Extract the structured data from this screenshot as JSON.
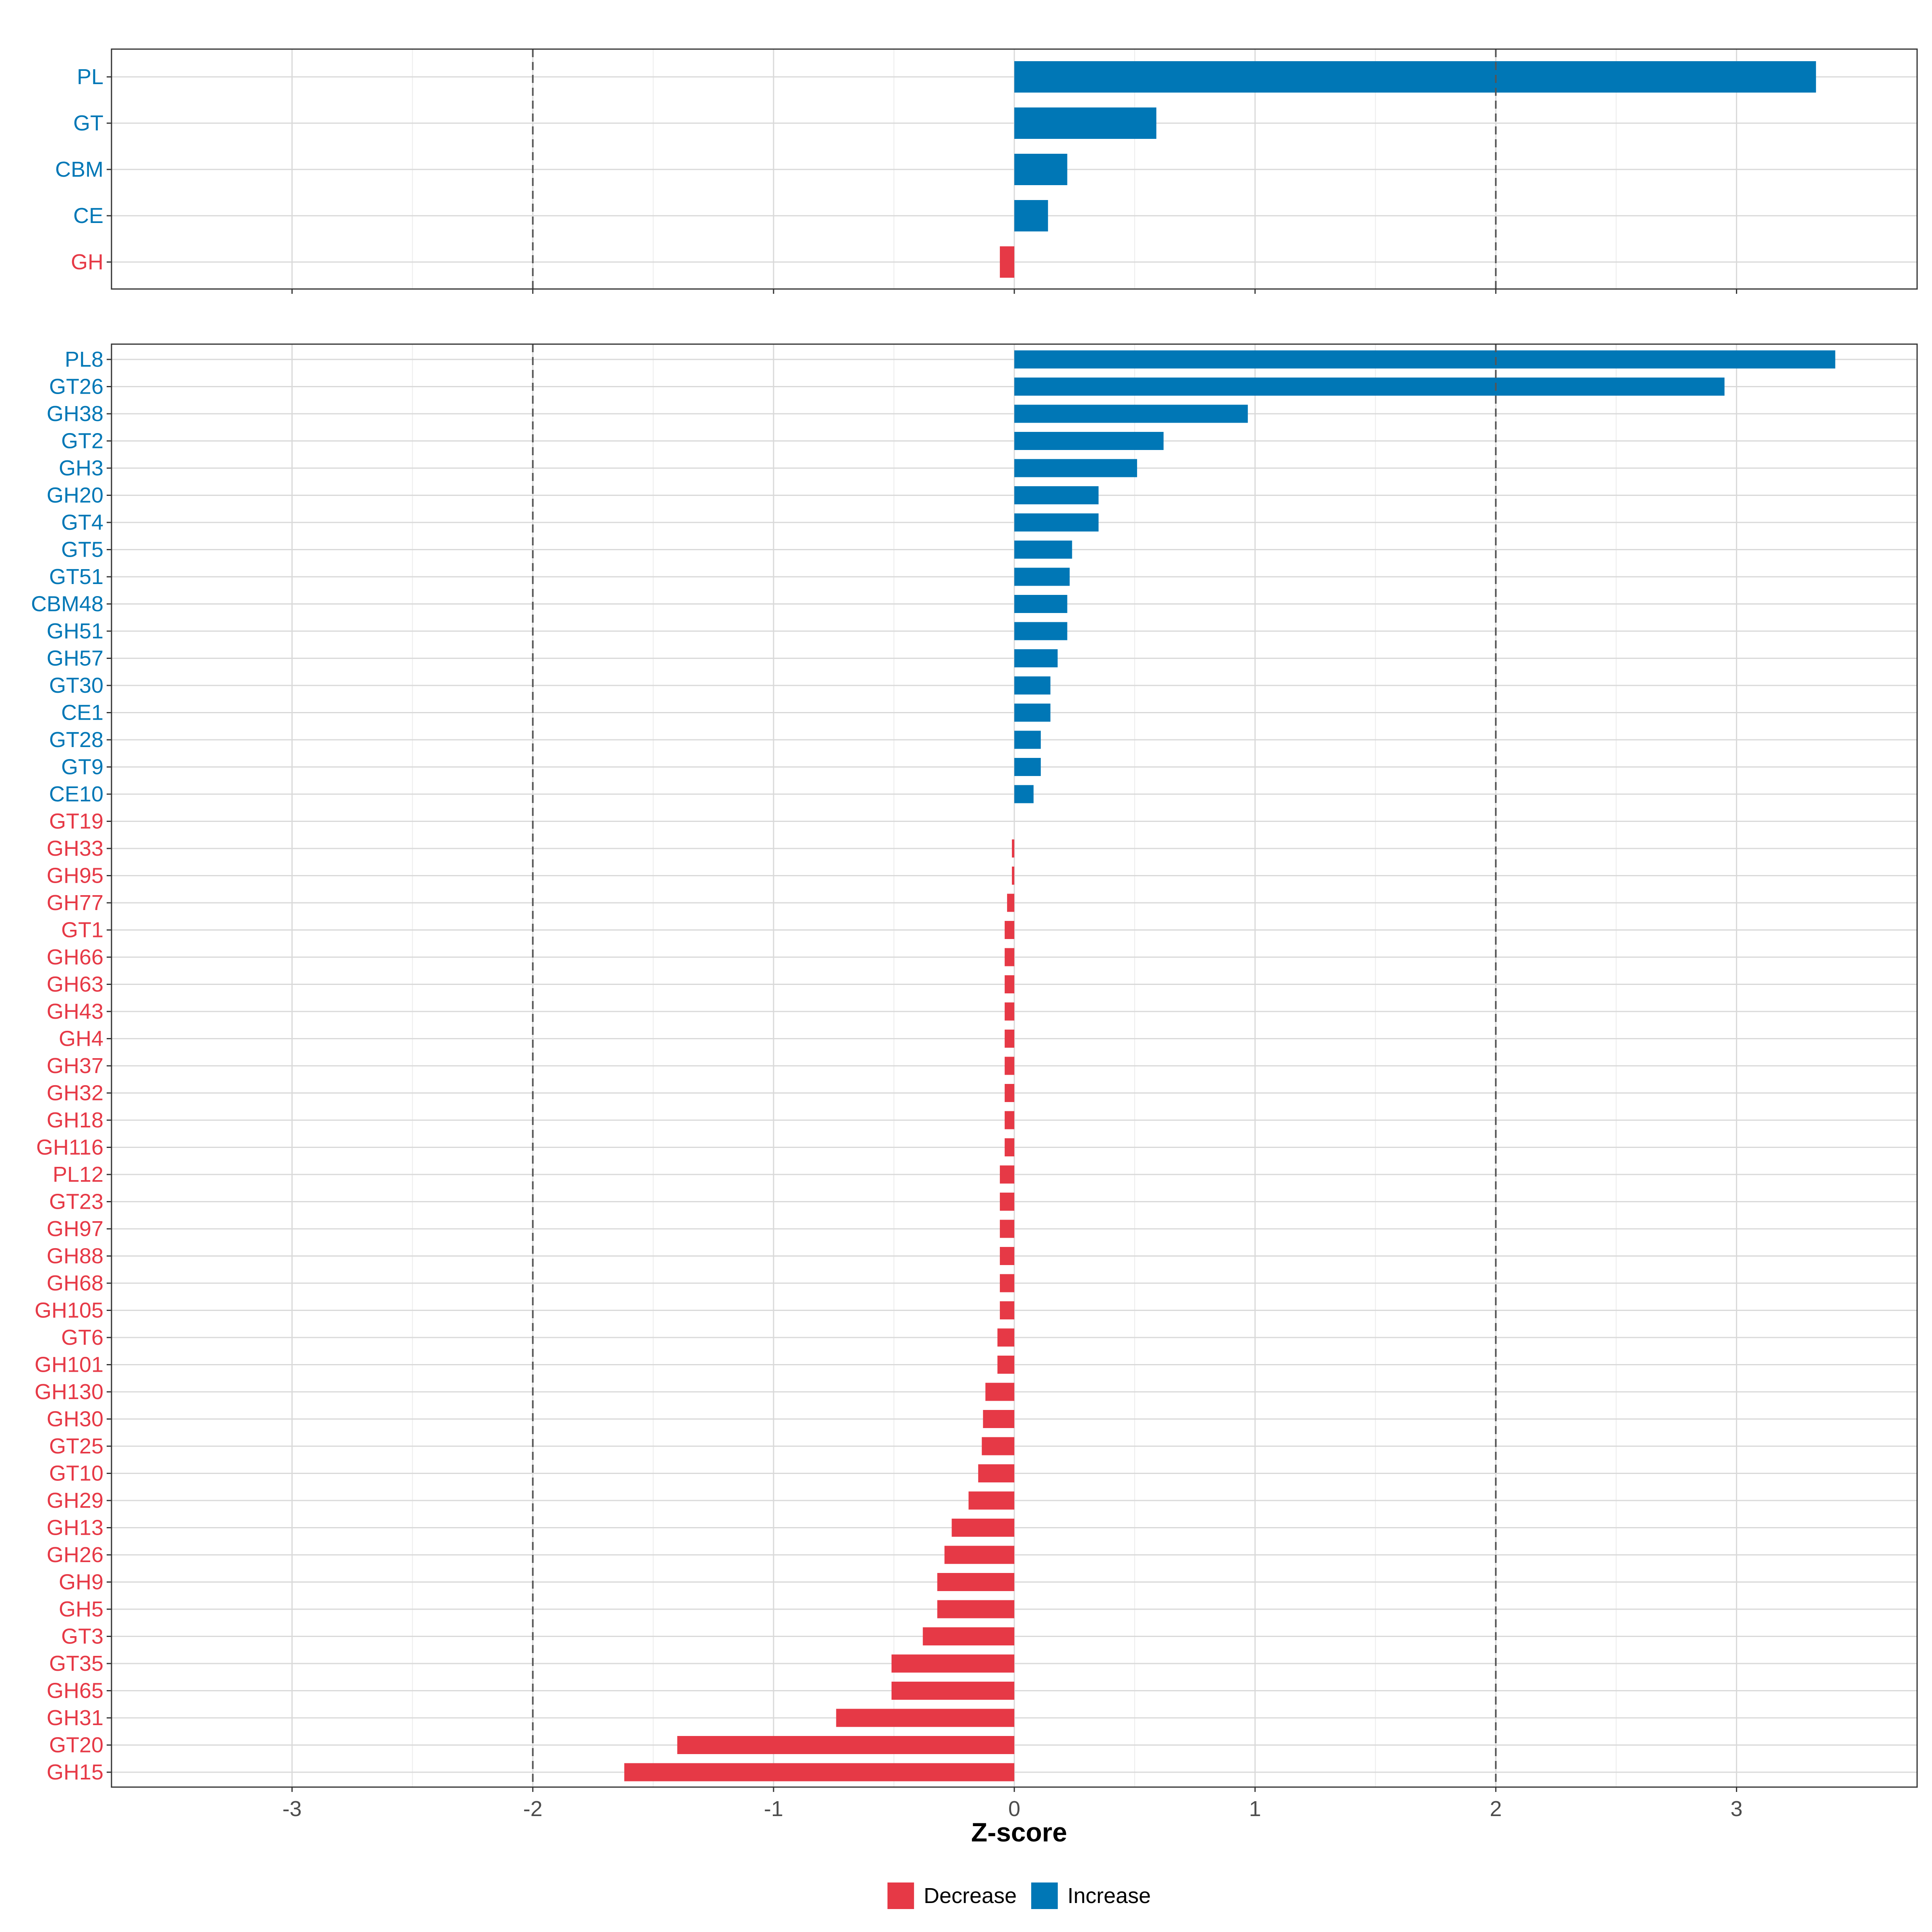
{
  "colors": {
    "increase": "#0077b6",
    "decrease": "#e63946",
    "grid": "#d9d9d9",
    "border": "#333333",
    "refline": "#555555"
  },
  "chart_data": [
    {
      "type": "bar",
      "orientation": "horizontal",
      "panel": "top",
      "categories": [
        "PL",
        "GT",
        "CBM",
        "CE",
        "GH"
      ],
      "values": [
        3.33,
        0.59,
        0.22,
        0.14,
        -0.06
      ],
      "xlim": [
        -3.75,
        3.75
      ],
      "reference_lines": [
        -2,
        2
      ]
    },
    {
      "type": "bar",
      "orientation": "horizontal",
      "panel": "bottom",
      "categories": [
        "PL8",
        "GT26",
        "GH38",
        "GT2",
        "GH3",
        "GH20",
        "GT4",
        "GT5",
        "GT51",
        "CBM48",
        "GH51",
        "GH57",
        "GT30",
        "CE1",
        "GT28",
        "GT9",
        "CE10",
        "GT19",
        "GH33",
        "GH95",
        "GH77",
        "GT1",
        "GH66",
        "GH63",
        "GH43",
        "GH4",
        "GH37",
        "GH32",
        "GH18",
        "GH116",
        "PL12",
        "GT23",
        "GH97",
        "GH88",
        "GH68",
        "GH105",
        "GT6",
        "GH101",
        "GH130",
        "GH30",
        "GT25",
        "GT10",
        "GH29",
        "GH13",
        "GH26",
        "GH9",
        "GH5",
        "GT3",
        "GT35",
        "GH65",
        "GH31",
        "GT20",
        "GH15"
      ],
      "values": [
        3.41,
        2.95,
        0.97,
        0.62,
        0.51,
        0.35,
        0.35,
        0.24,
        0.23,
        0.22,
        0.22,
        0.18,
        0.15,
        0.15,
        0.11,
        0.11,
        0.08,
        0,
        -0.01,
        -0.01,
        -0.03,
        -0.04,
        -0.04,
        -0.04,
        -0.04,
        -0.04,
        -0.04,
        -0.04,
        -0.04,
        -0.04,
        -0.06,
        -0.06,
        -0.06,
        -0.06,
        -0.06,
        -0.06,
        -0.07,
        -0.07,
        -0.12,
        -0.13,
        -0.135,
        -0.15,
        -0.19,
        -0.26,
        -0.29,
        -0.32,
        -0.32,
        -0.38,
        -0.51,
        -0.51,
        -0.74,
        -1.4,
        -1.62
      ],
      "xlabel": "Z-score",
      "xticks": [
        -3,
        -2,
        -1,
        0,
        1,
        2,
        3
      ],
      "xtick_labels": [
        "-3",
        "-2",
        "-1",
        "0",
        "1",
        "2",
        "3"
      ],
      "xlim": [
        -3.75,
        3.75
      ],
      "reference_lines": [
        -2,
        2
      ]
    }
  ],
  "legend": {
    "position": "bottom",
    "items": [
      {
        "label": "Decrease",
        "color": "#e63946"
      },
      {
        "label": "Increase",
        "color": "#0077b6"
      }
    ]
  }
}
